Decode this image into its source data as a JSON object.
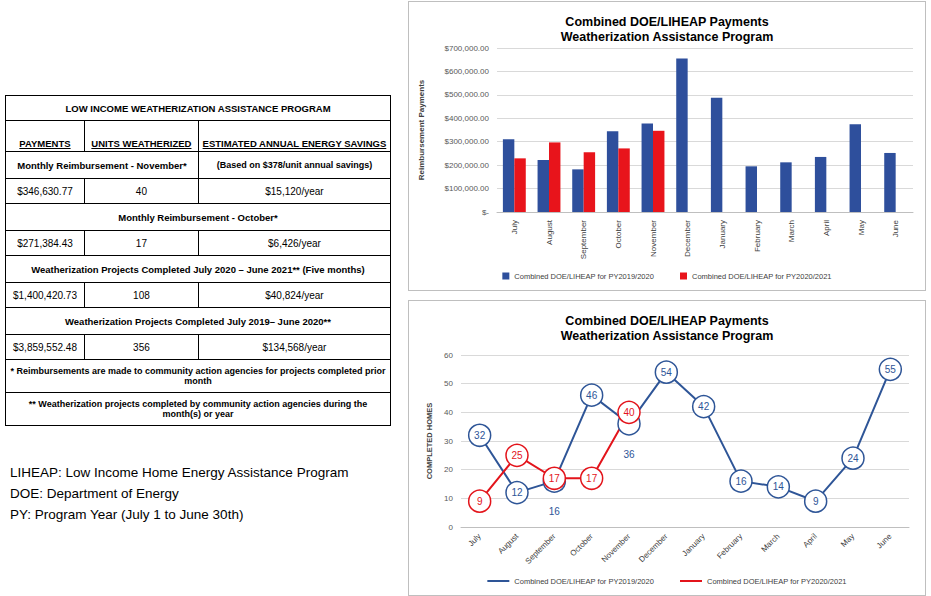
{
  "table": {
    "title": "LOW INCOME WEATHERIZATION ASSISTANCE PROGRAM",
    "headers": [
      "PAYMENTS",
      "UNITS WEATHERIZED",
      "ESTIMATED ANNUAL ENERGY SAVINGS"
    ],
    "sections": [
      {
        "label": "Monthly Reimbursement - November*",
        "note": "(Based on $378/unit annual savings)",
        "row": [
          "$346,630.77",
          "40",
          "$15,120/year"
        ]
      },
      {
        "label": "Monthly Reimbursement - October*",
        "row": [
          "$271,384.43",
          "17",
          "$6,426/year"
        ]
      },
      {
        "label": "Weatherization Projects Completed July 2020 – June 2021** (Five months)",
        "row": [
          "$1,400,420.73",
          "108",
          "$40,824/year"
        ]
      },
      {
        "label": "Weatherization Projects Completed July 2019– June 2020**",
        "row": [
          "$3,859,552.48",
          "356",
          "$134,568/year"
        ]
      }
    ],
    "footnotes": [
      "* Reimbursements are made to community action agencies for projects completed prior month",
      "** Weatherization projects completed by community action agencies during the month(s) or year"
    ]
  },
  "glossary": [
    "LIHEAP: Low Income Home Energy Assistance Program",
    "DOE: Department of Energy",
    "PY: Program Year (July 1 to June 30th)"
  ],
  "chart_data": [
    {
      "type": "bar",
      "title": "Combined DOE/LIHEAP Payments",
      "subtitle": "Weatherization Assistance Program",
      "y_label": "Reimbursement Payments",
      "categories": [
        "July",
        "August",
        "September",
        "October",
        "November",
        "December",
        "January",
        "February",
        "March",
        "April",
        "May",
        "June"
      ],
      "series": [
        {
          "name": "Combined DOE/LIHEAP for PY2019/2020",
          "color": "#2e4f9c",
          "values": [
            310000,
            222000,
            182000,
            345000,
            378000,
            655000,
            488000,
            195000,
            212000,
            235000,
            375000,
            252000
          ]
        },
        {
          "name": "Combined DOE/LIHEAP for PY2020/2021",
          "color": "#e8141b",
          "values": [
            229000,
            297000,
            255000,
            271384.43,
            346630.77,
            null,
            null,
            null,
            null,
            null,
            null,
            null
          ]
        }
      ],
      "ylim": [
        0,
        700000
      ],
      "yticks": [
        {
          "value": 0,
          "label": "$-"
        },
        {
          "value": 100000,
          "label": "$100,000.00"
        },
        {
          "value": 200000,
          "label": "$200,000.00"
        },
        {
          "value": 300000,
          "label": "$300,000.00"
        },
        {
          "value": 400000,
          "label": "$400,000.00"
        },
        {
          "value": 500000,
          "label": "$500,000.00"
        },
        {
          "value": 600000,
          "label": "$600,000.00"
        },
        {
          "value": 700000,
          "label": "$700,000.00"
        }
      ],
      "grid": true,
      "legend": "bottom"
    },
    {
      "type": "line",
      "title": "Combined DOE/LIHEAP Payments",
      "subtitle": "Weatherization Assistance Program",
      "y_label": "COMPLETED HOMES",
      "categories": [
        "July",
        "August",
        "September",
        "October",
        "November",
        "December",
        "January",
        "February",
        "March",
        "April",
        "May",
        "June"
      ],
      "series": [
        {
          "name": "Combined DOE/LIHEAP for PY2019/2020",
          "color": "#2e5597",
          "values": [
            32,
            12,
            16,
            46,
            36,
            54,
            42,
            16,
            14,
            9,
            24,
            55
          ]
        },
        {
          "name": "Combined DOE/LIHEAP for PY2020/2021",
          "color": "#e3141b",
          "values": [
            9,
            25,
            17,
            17,
            40,
            null,
            null,
            null,
            null,
            null,
            null,
            null
          ]
        }
      ],
      "ylim": [
        0,
        60
      ],
      "yticks": [
        0,
        10,
        20,
        30,
        40,
        50,
        60
      ],
      "grid": true,
      "legend": "bottom",
      "marker": "circle",
      "data_labels": true
    }
  ]
}
